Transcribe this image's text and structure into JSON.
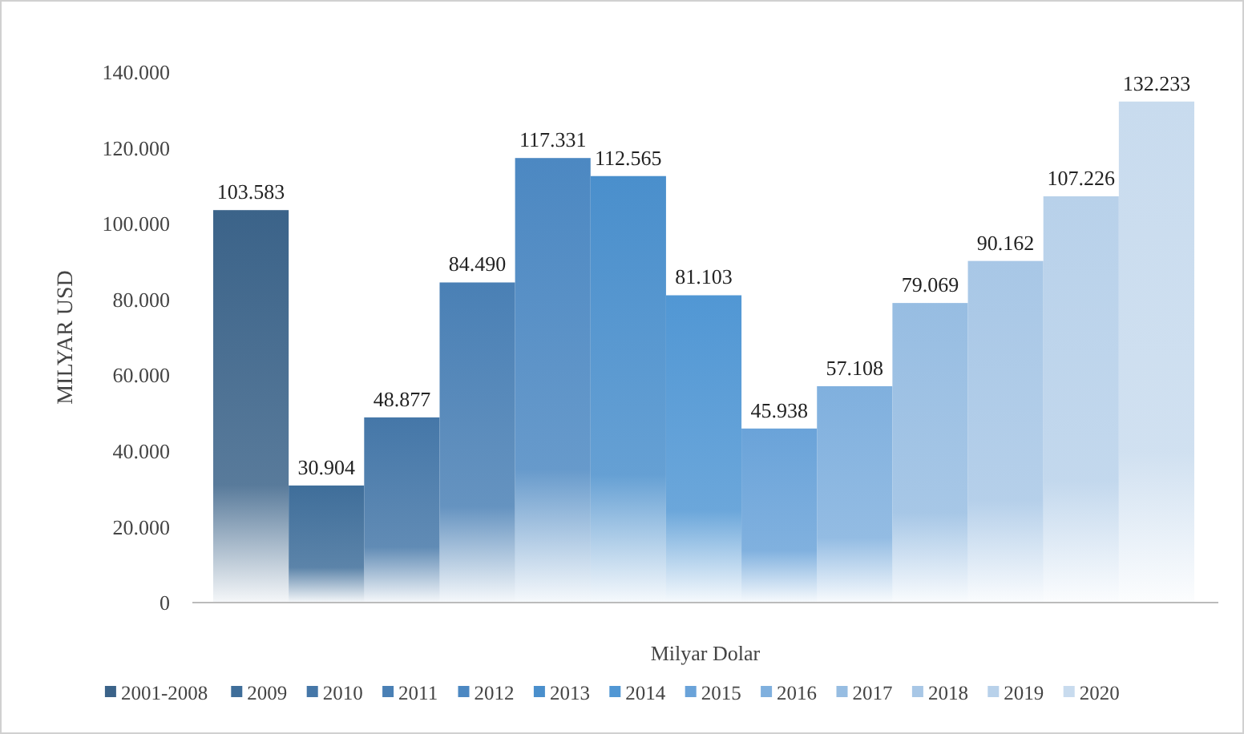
{
  "chart_data": {
    "type": "bar",
    "xlabel": "Milyar Dolar",
    "ylabel": "MILYAR USD",
    "categories": [
      null
    ],
    "ylim": [
      0,
      140000
    ],
    "yticks": [
      {
        "value": 0,
        "label": "0"
      },
      {
        "value": 20000,
        "label": "20.000"
      },
      {
        "value": 40000,
        "label": "40.000"
      },
      {
        "value": 60000,
        "label": "60.000"
      },
      {
        "value": 80000,
        "label": "80.000"
      },
      {
        "value": 100000,
        "label": "100.000"
      },
      {
        "value": 120000,
        "label": "120.000"
      },
      {
        "value": 140000,
        "label": "140.000"
      }
    ],
    "legend": "bottom",
    "grid": false,
    "series": [
      {
        "name": "2001-2008",
        "color": "#3b6389",
        "values": [
          103583
        ],
        "value_labels": [
          "103.583"
        ]
      },
      {
        "name": "2009",
        "color": "#3f6e9a",
        "values": [
          30904
        ],
        "value_labels": [
          "30.904"
        ]
      },
      {
        "name": "2010",
        "color": "#4577a8",
        "values": [
          48877
        ],
        "value_labels": [
          "48.877"
        ]
      },
      {
        "name": "2011",
        "color": "#4a80b5",
        "values": [
          84490
        ],
        "value_labels": [
          "84.490"
        ]
      },
      {
        "name": "2012",
        "color": "#4c88c2",
        "values": [
          117331
        ],
        "value_labels": [
          "117.331"
        ]
      },
      {
        "name": "2013",
        "color": "#4a8fcc",
        "values": [
          112565
        ],
        "value_labels": [
          "112.565"
        ]
      },
      {
        "name": "2014",
        "color": "#5197d4",
        "values": [
          81103
        ],
        "value_labels": [
          "81.103"
        ]
      },
      {
        "name": "2015",
        "color": "#6aa3d9",
        "values": [
          45938
        ],
        "value_labels": [
          "45.938"
        ]
      },
      {
        "name": "2016",
        "color": "#80b0de",
        "values": [
          57108
        ],
        "value_labels": [
          "57.108"
        ]
      },
      {
        "name": "2017",
        "color": "#97bde2",
        "values": [
          79069
        ],
        "value_labels": [
          "79.069"
        ]
      },
      {
        "name": "2018",
        "color": "#a8c7e6",
        "values": [
          90162
        ],
        "value_labels": [
          "90.162"
        ]
      },
      {
        "name": "2019",
        "color": "#b8d1ea",
        "values": [
          107226
        ],
        "value_labels": [
          "107.226"
        ]
      },
      {
        "name": "2020",
        "color": "#c8dbee",
        "values": [
          132233
        ],
        "value_labels": [
          "132.233"
        ]
      }
    ]
  }
}
